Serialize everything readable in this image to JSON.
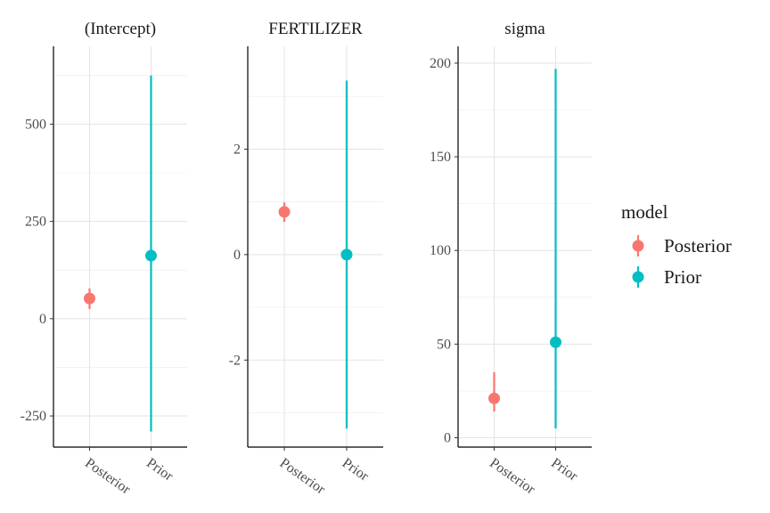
{
  "chart_data": {
    "type": "pointrange",
    "colors": {
      "Posterior": "#F8766D",
      "Prior": "#00BFC4"
    },
    "legend": {
      "title": "model",
      "entries": [
        "Posterior",
        "Prior"
      ],
      "placement": "right"
    },
    "categories": [
      "Posterior",
      "Prior"
    ],
    "panels": [
      {
        "title": "(Intercept)",
        "ylim": [
          -330,
          700
        ],
        "yticks": [
          -250,
          0,
          250,
          500
        ],
        "ytick_labels": [
          "-250",
          "0",
          "250",
          "500"
        ],
        "points": [
          {
            "model": "Posterior",
            "y": 52,
            "low": 25,
            "high": 78
          },
          {
            "model": "Prior",
            "y": 162,
            "low": -290,
            "high": 625
          }
        ]
      },
      {
        "title": "FERTILIZER",
        "ylim": [
          -3.65,
          3.95
        ],
        "yticks": [
          -2,
          0,
          2
        ],
        "ytick_labels": [
          "-2",
          "0",
          "2"
        ],
        "points": [
          {
            "model": "Posterior",
            "y": 0.81,
            "low": 0.62,
            "high": 0.99
          },
          {
            "model": "Prior",
            "y": 0.0,
            "low": -3.3,
            "high": 3.3
          }
        ]
      },
      {
        "title": "sigma",
        "ylim": [
          -5,
          209
        ],
        "yticks": [
          0,
          50,
          100,
          150,
          200
        ],
        "ytick_labels": [
          "0",
          "50",
          "100",
          "150",
          "200"
        ],
        "points": [
          {
            "model": "Posterior",
            "y": 21,
            "low": 14,
            "high": 35
          },
          {
            "model": "Prior",
            "y": 51,
            "low": 5,
            "high": 197
          }
        ]
      }
    ],
    "grid": true
  }
}
